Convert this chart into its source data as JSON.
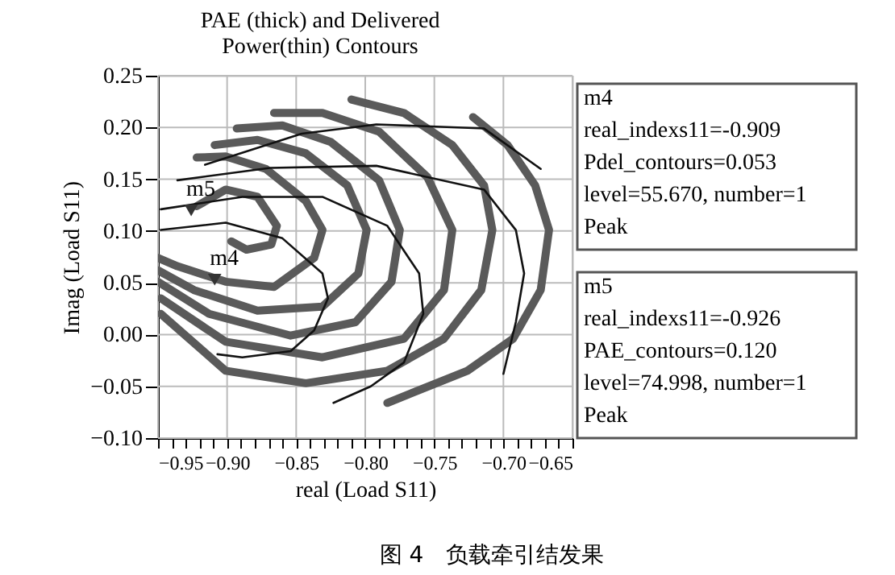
{
  "chart_data": {
    "type": "line",
    "title": "PAE (thick) and Delivered Power(thin) Contours",
    "xlabel": "real (Load S11)",
    "ylabel": "Imag (Load S11)",
    "xlim": [
      -0.95,
      -0.65
    ],
    "ylim": [
      -0.1,
      0.25
    ],
    "xticks": [
      {
        "value": -0.95,
        "label": "−0.95"
      },
      {
        "value": -0.94,
        "label": null
      },
      {
        "value": -0.93,
        "label": null
      },
      {
        "value": -0.92,
        "label": null
      },
      {
        "value": -0.91,
        "label": null
      },
      {
        "value": -0.9,
        "label": "−0.90"
      },
      {
        "value": -0.89,
        "label": null
      },
      {
        "value": -0.88,
        "label": null
      },
      {
        "value": -0.87,
        "label": null
      },
      {
        "value": -0.86,
        "label": null
      },
      {
        "value": -0.85,
        "label": "−0.85"
      },
      {
        "value": -0.84,
        "label": null
      },
      {
        "value": -0.83,
        "label": null
      },
      {
        "value": -0.82,
        "label": null
      },
      {
        "value": -0.81,
        "label": null
      },
      {
        "value": -0.8,
        "label": "−0.80"
      },
      {
        "value": -0.79,
        "label": null
      },
      {
        "value": -0.78,
        "label": null
      },
      {
        "value": -0.77,
        "label": null
      },
      {
        "value": -0.76,
        "label": null
      },
      {
        "value": -0.75,
        "label": "−0.75"
      },
      {
        "value": -0.74,
        "label": null
      },
      {
        "value": -0.73,
        "label": null
      },
      {
        "value": -0.72,
        "label": null
      },
      {
        "value": -0.71,
        "label": null
      },
      {
        "value": -0.7,
        "label": "−0.70"
      },
      {
        "value": -0.69,
        "label": null
      },
      {
        "value": -0.68,
        "label": null
      },
      {
        "value": -0.67,
        "label": null
      },
      {
        "value": -0.66,
        "label": null
      },
      {
        "value": -0.65,
        "label": "−0.65"
      }
    ],
    "yticks": [
      {
        "value": -0.1,
        "label": "−0.10"
      },
      {
        "value": -0.05,
        "label": "−0.05"
      },
      {
        "value": 0.0,
        "label": "0.00"
      },
      {
        "value": 0.05,
        "label": "0.05"
      },
      {
        "value": 0.1,
        "label": "0.10"
      },
      {
        "value": 0.15,
        "label": "0.15"
      },
      {
        "value": 0.2,
        "label": "0.20"
      },
      {
        "value": 0.25,
        "label": "0.25"
      }
    ],
    "grid": true,
    "series": [
      {
        "type": "line",
        "color": "#5a5a5a",
        "x": [
          -0.922,
          -0.901,
          -0.878,
          -0.864,
          -0.868,
          -0.886,
          -0.897
        ],
        "values": [
          0.124,
          0.14,
          0.133,
          0.105,
          0.087,
          0.082,
          0.09
        ]
      },
      {
        "type": "line",
        "color": "#5a5a5a",
        "x": [
          -0.922,
          -0.901,
          -0.872,
          -0.843,
          -0.831,
          -0.837,
          -0.866,
          -0.901,
          -0.936,
          -0.95
        ],
        "values": [
          0.171,
          0.172,
          0.16,
          0.129,
          0.101,
          0.074,
          0.046,
          0.051,
          0.066,
          0.074
        ]
      },
      {
        "type": "line",
        "color": "#5a5a5a",
        "x": [
          -0.909,
          -0.878,
          -0.843,
          -0.813,
          -0.799,
          -0.805,
          -0.831,
          -0.878,
          -0.924,
          -0.95
        ],
        "values": [
          0.183,
          0.188,
          0.175,
          0.144,
          0.101,
          0.059,
          0.027,
          0.023,
          0.043,
          0.062
        ]
      },
      {
        "type": "line",
        "color": "#5a5a5a",
        "x": [
          -0.893,
          -0.86,
          -0.825,
          -0.79,
          -0.775,
          -0.781,
          -0.807,
          -0.854,
          -0.913,
          -0.95
        ],
        "values": [
          0.199,
          0.202,
          0.186,
          0.149,
          0.101,
          0.051,
          0.012,
          -0.001,
          0.02,
          0.051
        ]
      },
      {
        "type": "line",
        "color": "#5a5a5a",
        "x": [
          -0.866,
          -0.831,
          -0.79,
          -0.755,
          -0.737,
          -0.743,
          -0.772,
          -0.831,
          -0.901,
          -0.948
        ],
        "values": [
          0.214,
          0.214,
          0.196,
          0.152,
          0.101,
          0.043,
          -0.004,
          -0.022,
          -0.007,
          0.035
        ]
      },
      {
        "type": "line",
        "color": "#5a5a5a",
        "x": [
          -0.81,
          -0.772,
          -0.737,
          -0.714,
          -0.708,
          -0.716,
          -0.743,
          -0.784,
          -0.843,
          -0.901,
          -0.948
        ],
        "values": [
          0.227,
          0.214,
          0.183,
          0.144,
          0.101,
          0.043,
          -0.004,
          -0.035,
          -0.047,
          -0.035,
          0.02
        ]
      },
      {
        "type": "line",
        "color": "#5a5a5a",
        "x": [
          -0.722,
          -0.697,
          -0.677,
          -0.667,
          -0.673,
          -0.693,
          -0.726,
          -0.784
        ],
        "values": [
          0.21,
          0.183,
          0.144,
          0.101,
          0.043,
          -0.004,
          -0.035,
          -0.066
        ]
      },
      {
        "type": "line",
        "color": "#111111",
        "x": [
          -0.948,
          -0.901,
          -0.86,
          -0.831,
          -0.827,
          -0.837,
          -0.854,
          -0.889,
          -0.907
        ],
        "values": [
          0.101,
          0.108,
          0.093,
          0.059,
          0.035,
          0.004,
          -0.016,
          -0.022,
          -0.019
        ]
      },
      {
        "type": "line",
        "color": "#111111",
        "x": [
          -0.948,
          -0.889,
          -0.831,
          -0.784,
          -0.761,
          -0.758,
          -0.772,
          -0.796,
          -0.823
        ],
        "values": [
          0.121,
          0.133,
          0.133,
          0.105,
          0.059,
          0.02,
          -0.027,
          -0.05,
          -0.066
        ]
      },
      {
        "type": "line",
        "color": "#111111",
        "x": [
          -0.936,
          -0.869,
          -0.792,
          -0.714,
          -0.691,
          -0.685,
          -0.691,
          -0.7
        ],
        "values": [
          0.149,
          0.161,
          0.163,
          0.14,
          0.101,
          0.059,
          0.012,
          -0.038
        ]
      },
      {
        "type": "line",
        "color": "#111111",
        "x": [
          -0.916,
          -0.846,
          -0.792,
          -0.714,
          -0.673
        ],
        "values": [
          0.164,
          0.194,
          0.203,
          0.199,
          0.16
        ]
      },
      {
        "type": "scatter",
        "marker": "triangle",
        "color": "#333333",
        "x": [
          -0.909,
          -0.926
        ],
        "values": [
          0.053,
          0.12
        ]
      }
    ],
    "annotations": [
      {
        "text": "m4",
        "x": -0.909,
        "y": 0.053
      },
      {
        "text": "m5",
        "x": -0.926,
        "y": 0.12
      },
      "m4\nreal_indexs11=-0.909\nPdel_contours=0.053\nlevel=55.670, number=1\nPeak",
      "m5\nreal_indexs11=-0.926\nPAE_contours=0.120\nlevel=74.998, number=1\nPeak",
      "图 4　负载牵引结发果"
    ]
  }
}
